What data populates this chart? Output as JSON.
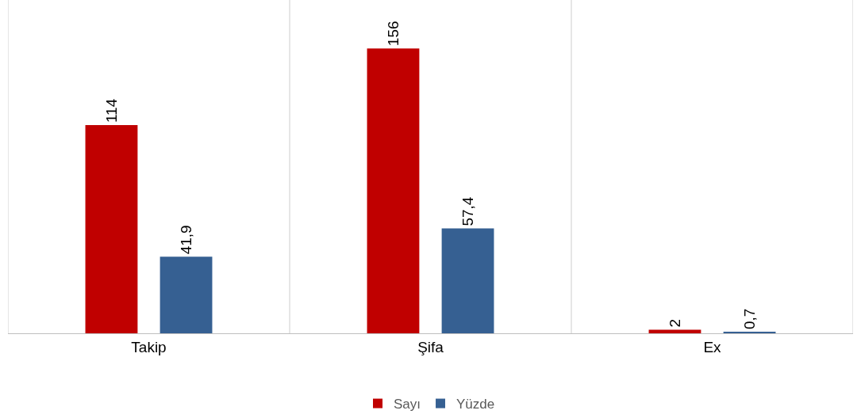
{
  "chart_data": {
    "type": "bar",
    "categories": [
      "Takip",
      "Şifa",
      "Ex"
    ],
    "series": [
      {
        "name": "Sayı",
        "color": "#c00000",
        "values": [
          114,
          156,
          2
        ],
        "value_labels": [
          "114",
          "156",
          "2"
        ]
      },
      {
        "name": "Yüzde",
        "color": "#366092",
        "values": [
          41.9,
          57.4,
          0.7
        ],
        "value_labels": [
          "41,9",
          "57,4",
          "0,7"
        ]
      }
    ],
    "grid": "x",
    "legend": "bottom"
  }
}
